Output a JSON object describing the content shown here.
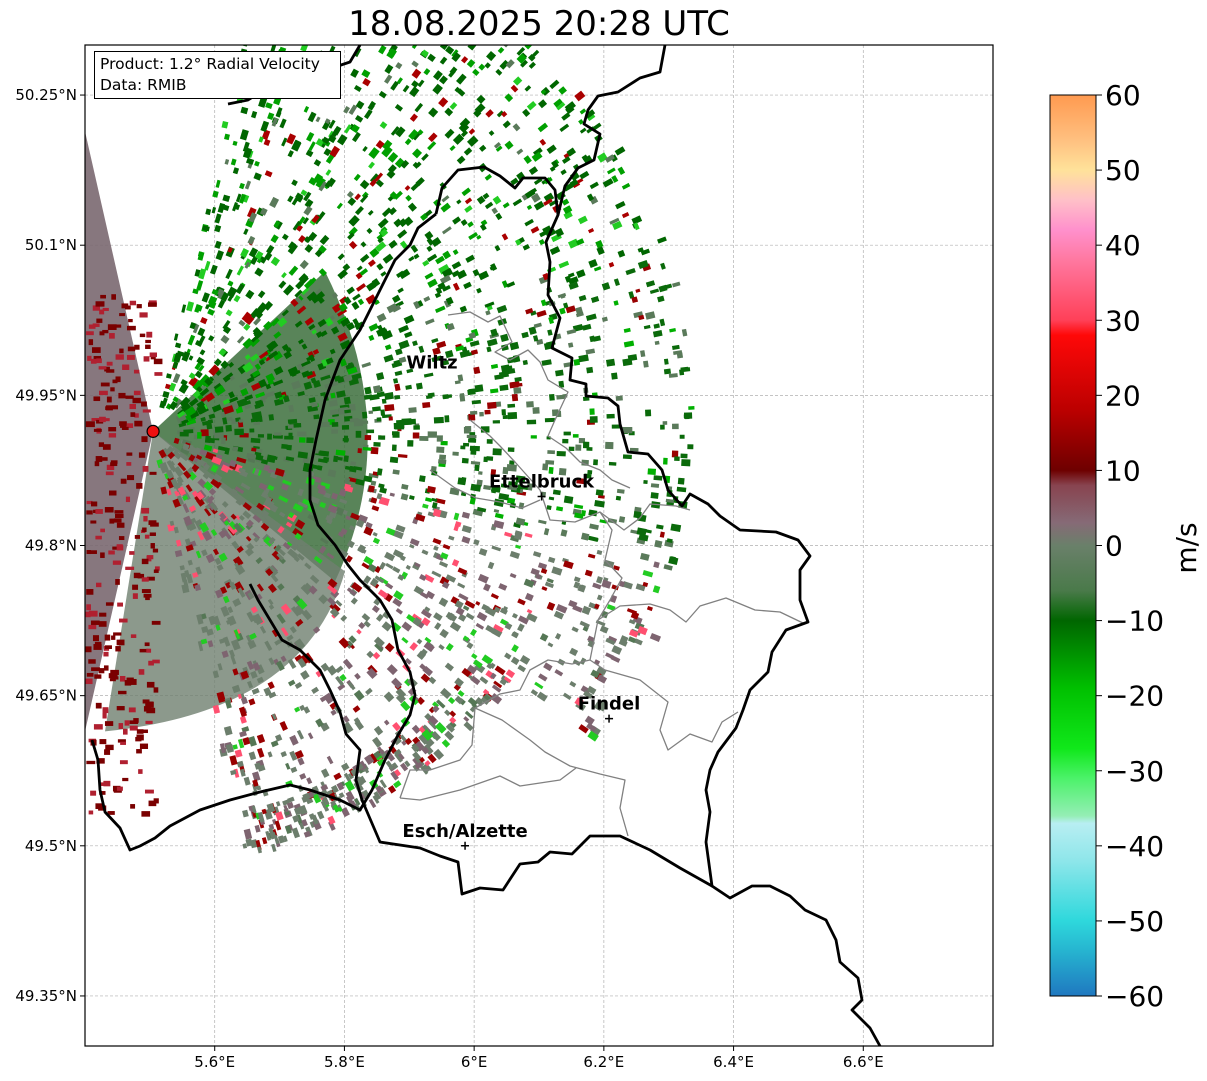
{
  "title": "18.08.2025 20:28 UTC",
  "info": {
    "product": "Product: 1.2° Radial Velocity",
    "data": "Data: RMIB"
  },
  "map": {
    "lon_range": [
      5.4,
      6.8
    ],
    "lat_range": [
      49.3,
      50.3
    ],
    "x_ticks": [
      {
        "value": 5.6,
        "label": "5.6°E"
      },
      {
        "value": 5.8,
        "label": "5.8°E"
      },
      {
        "value": 6.0,
        "label": "6°E"
      },
      {
        "value": 6.2,
        "label": "6.2°E"
      },
      {
        "value": 6.4,
        "label": "6.4°E"
      },
      {
        "value": 6.6,
        "label": "6.6°E"
      }
    ],
    "y_ticks": [
      {
        "value": 50.25,
        "label": "50.25°N"
      },
      {
        "value": 50.1,
        "label": "50.1°N"
      },
      {
        "value": 49.95,
        "label": "49.95°N"
      },
      {
        "value": 49.8,
        "label": "49.8°N"
      },
      {
        "value": 49.65,
        "label": "49.65°N"
      },
      {
        "value": 49.5,
        "label": "49.5°N"
      },
      {
        "value": 49.35,
        "label": "49.35°N"
      }
    ],
    "grid": true,
    "radar_site": {
      "lon": 5.505,
      "lat": 49.914
    },
    "cities": [
      {
        "name": "Wiltz",
        "lon": 5.935,
        "lat": 49.968,
        "marker": false
      },
      {
        "name": "Ettelbruck",
        "lon": 6.104,
        "lat": 49.849,
        "marker": true
      },
      {
        "name": "Findel",
        "lon": 6.208,
        "lat": 49.627,
        "marker": true
      },
      {
        "name": "Esch/Alzette",
        "lon": 5.986,
        "lat": 49.5,
        "marker": true
      }
    ]
  },
  "colorbar": {
    "label": "m/s",
    "min": -60,
    "max": 60,
    "ticks": [
      "60",
      "50",
      "40",
      "30",
      "20",
      "10",
      "0",
      "−10",
      "−20",
      "−30",
      "−40",
      "−50",
      "−60"
    ],
    "tick_values": [
      60,
      50,
      40,
      30,
      20,
      10,
      0,
      -10,
      -20,
      -30,
      -40,
      -50,
      -60
    ],
    "stops": [
      {
        "v": -60,
        "c": "#1f78c0"
      },
      {
        "v": -54,
        "c": "#26b4d0"
      },
      {
        "v": -50,
        "c": "#2ed8dc"
      },
      {
        "v": -42,
        "c": "#8ee6ea"
      },
      {
        "v": -37,
        "c": "#b8eef2"
      },
      {
        "v": -36,
        "c": "#94eeb4"
      },
      {
        "v": -31,
        "c": "#4cf26a"
      },
      {
        "v": -27,
        "c": "#10e81a"
      },
      {
        "v": -19,
        "c": "#00c000"
      },
      {
        "v": -10,
        "c": "#006600"
      },
      {
        "v": -6,
        "c": "#4a7a4a"
      },
      {
        "v": 0,
        "c": "#6a806a"
      },
      {
        "v": 3,
        "c": "#866a76"
      },
      {
        "v": 8,
        "c": "#884450"
      },
      {
        "v": 10,
        "c": "#6e0000"
      },
      {
        "v": 18,
        "c": "#bb0000"
      },
      {
        "v": 28,
        "c": "#ff0808"
      },
      {
        "v": 30,
        "c": "#ff4058"
      },
      {
        "v": 38,
        "c": "#ff78a0"
      },
      {
        "v": 42,
        "c": "#ff90cc"
      },
      {
        "v": 46,
        "c": "#ffc0c8"
      },
      {
        "v": 50,
        "c": "#ffe29a"
      },
      {
        "v": 54,
        "c": "#ffc080"
      },
      {
        "v": 60,
        "c": "#ff9a50"
      }
    ]
  }
}
